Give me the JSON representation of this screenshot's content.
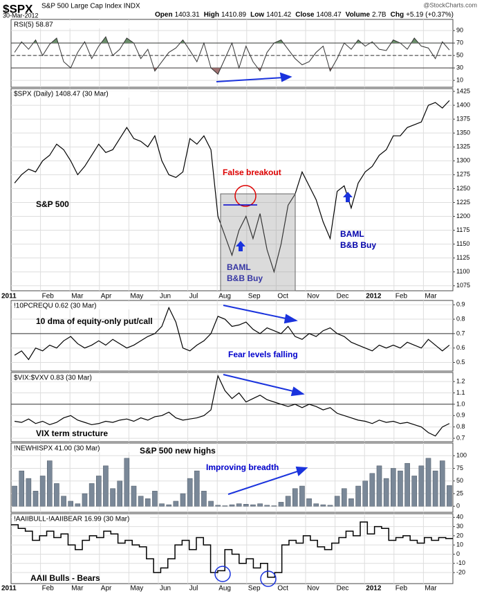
{
  "header": {
    "symbol": "$SPX",
    "name": "S&P 500 Large Cap Index INDX",
    "date": "30-Mar-2012",
    "source": "@StockCharts.com",
    "quote": [
      {
        "label": "Open",
        "value": "1403.31"
      },
      {
        "label": "High",
        "value": "1410.89"
      },
      {
        "label": "Low",
        "value": "1401.42"
      },
      {
        "label": "Close",
        "value": "1408.47"
      },
      {
        "label": "Volume",
        "value": "2.7B"
      },
      {
        "label": "Chg",
        "value": "+5.19 (+0.37%)"
      }
    ]
  },
  "time_axis": {
    "labels": [
      "2011",
      "Feb",
      "Mar",
      "Apr",
      "May",
      "Jun",
      "Jul",
      "Aug",
      "Sep",
      "Oct",
      "Nov",
      "Dec",
      "2012",
      "Feb",
      "Mar"
    ]
  },
  "chart_data": [
    {
      "type": "area-band",
      "label": "RSI(5) 58.87",
      "color": "#333333",
      "fill_above_color": "#6b8f6b",
      "fill_below_color": "#a07272",
      "values": [
        55,
        72,
        60,
        75,
        50,
        68,
        78,
        40,
        30,
        55,
        72,
        45,
        65,
        80,
        50,
        60,
        78,
        70,
        45,
        60,
        25,
        40,
        55,
        62,
        75,
        58,
        40,
        70,
        30,
        20,
        45,
        70,
        30,
        65,
        40,
        25,
        55,
        70,
        75,
        60,
        45,
        35,
        40,
        55,
        65,
        25,
        45,
        70,
        60,
        75,
        65,
        72,
        60,
        58,
        75,
        70,
        60,
        78,
        65,
        62,
        45,
        72,
        58.87
      ],
      "ylim": [
        -1,
        108
      ],
      "yticks": [
        90,
        70,
        50,
        30,
        10
      ],
      "reference_lines": [
        {
          "value": 70,
          "style": "solid"
        },
        {
          "value": 50,
          "style": "dashed"
        },
        {
          "value": 30,
          "style": "solid"
        }
      ],
      "grid": true,
      "annotations": []
    },
    {
      "type": "line",
      "label": "$SPX (Daily) 1408.47 (30 Mar)",
      "color": "#000000",
      "values": [
        1260,
        1275,
        1285,
        1280,
        1300,
        1310,
        1330,
        1320,
        1300,
        1275,
        1290,
        1310,
        1330,
        1315,
        1320,
        1340,
        1360,
        1340,
        1335,
        1325,
        1345,
        1300,
        1275,
        1270,
        1280,
        1340,
        1330,
        1345,
        1320,
        1200,
        1165,
        1130,
        1175,
        1200,
        1160,
        1205,
        1140,
        1100,
        1150,
        1220,
        1240,
        1280,
        1255,
        1230,
        1190,
        1160,
        1245,
        1255,
        1215,
        1260,
        1280,
        1290,
        1310,
        1320,
        1345,
        1345,
        1360,
        1365,
        1370,
        1400,
        1405,
        1395,
        1408.47
      ],
      "ylim": [
        1066,
        1430
      ],
      "yticks": [
        1425,
        1400,
        1375,
        1350,
        1325,
        1300,
        1275,
        1250,
        1225,
        1200,
        1175,
        1150,
        1125,
        1100,
        1075
      ],
      "reference_lines": [],
      "grid": true,
      "annotations": [
        {
          "text": "S&P 500",
          "color": "#000000"
        },
        {
          "text": "False breakout",
          "color": "#dd0000"
        },
        {
          "text": "BAML",
          "color": "#0000aa"
        },
        {
          "text": "B&B Buy",
          "color": "#0000aa"
        },
        {
          "text": "BAML",
          "color": "#0000aa"
        },
        {
          "text": "B&B Buy",
          "color": "#0000aa"
        }
      ]
    },
    {
      "type": "line",
      "label": "!10PCREQU 0.62 (30 Mar)",
      "color": "#000000",
      "values": [
        0.55,
        0.58,
        0.52,
        0.6,
        0.58,
        0.62,
        0.6,
        0.65,
        0.68,
        0.63,
        0.6,
        0.62,
        0.65,
        0.62,
        0.66,
        0.63,
        0.6,
        0.62,
        0.65,
        0.68,
        0.7,
        0.75,
        0.88,
        0.78,
        0.6,
        0.58,
        0.62,
        0.65,
        0.7,
        0.82,
        0.8,
        0.75,
        0.76,
        0.78,
        0.73,
        0.7,
        0.74,
        0.72,
        0.7,
        0.75,
        0.68,
        0.66,
        0.7,
        0.68,
        0.72,
        0.74,
        0.7,
        0.68,
        0.64,
        0.62,
        0.6,
        0.58,
        0.62,
        0.6,
        0.62,
        0.6,
        0.64,
        0.62,
        0.6,
        0.66,
        0.62,
        0.58,
        0.62
      ],
      "ylim": [
        0.44,
        0.93
      ],
      "yticks": [
        0.9,
        0.8,
        0.7,
        0.6,
        0.5
      ],
      "reference_lines": [
        {
          "value": 0.7,
          "style": "solid"
        }
      ],
      "grid": true,
      "annotations": [
        {
          "text": "10 dma of equity-only put/call",
          "color": "#000000"
        },
        {
          "text": "Fear levels falling",
          "color": "#0000cc"
        }
      ]
    },
    {
      "type": "line",
      "label": "$VIX:$VXV 0.83 (30 Mar)",
      "color": "#000000",
      "values": [
        0.85,
        0.84,
        0.87,
        0.83,
        0.85,
        0.82,
        0.84,
        0.88,
        0.9,
        0.86,
        0.84,
        0.82,
        0.83,
        0.85,
        0.84,
        0.86,
        0.87,
        0.85,
        0.88,
        0.86,
        0.89,
        0.9,
        0.93,
        0.88,
        0.86,
        0.87,
        0.88,
        0.9,
        0.95,
        1.25,
        1.12,
        1.05,
        1.1,
        1.02,
        1.05,
        1.08,
        1.04,
        1.02,
        1,
        0.98,
        1,
        0.97,
        1,
        0.98,
        0.95,
        0.97,
        0.92,
        0.9,
        0.88,
        0.86,
        0.85,
        0.83,
        0.86,
        0.84,
        0.85,
        0.83,
        0.84,
        0.82,
        0.8,
        0.75,
        0.72,
        0.8,
        0.83
      ],
      "ylim": [
        0.67,
        1.28
      ],
      "yticks": [
        1.2,
        1.1,
        {
          "value": 1,
          "label": "1.0"
        },
        0.9,
        0.8,
        0.7
      ],
      "reference_lines": [
        {
          "value": 1,
          "style": "solid"
        }
      ],
      "grid": true,
      "annotations": [
        {
          "text": "VIX term structure",
          "color": "#000000"
        }
      ]
    },
    {
      "type": "bar",
      "label": "!NEWHISPX 41.00 (30 Mar)",
      "color": "#7a8898",
      "values": [
        40,
        70,
        55,
        30,
        60,
        90,
        45,
        20,
        10,
        5,
        25,
        45,
        60,
        80,
        35,
        50,
        95,
        40,
        20,
        15,
        30,
        5,
        3,
        10,
        25,
        55,
        70,
        30,
        10,
        2,
        1,
        3,
        5,
        4,
        3,
        5,
        2,
        1,
        8,
        20,
        35,
        40,
        15,
        5,
        3,
        2,
        20,
        35,
        15,
        40,
        50,
        65,
        80,
        55,
        75,
        70,
        85,
        60,
        80,
        95,
        70,
        90,
        41
      ],
      "ylim": [
        -12,
        125
      ],
      "yticks": [
        100,
        75,
        50,
        25,
        0
      ],
      "reference_lines": [],
      "grid": true,
      "annotations": [
        {
          "text": "S&P 500 new highs",
          "color": "#000000"
        },
        {
          "text": "Improving breadth",
          "color": "#0000cc"
        }
      ]
    },
    {
      "type": "step",
      "label": "!AAIIBULL-!AAIIBEAR 16.99 (30 Mar)",
      "color": "#000000",
      "values": [
        32,
        28,
        25,
        15,
        20,
        25,
        18,
        22,
        10,
        5,
        15,
        20,
        18,
        25,
        22,
        12,
        15,
        10,
        8,
        -5,
        -20,
        -15,
        -5,
        10,
        15,
        5,
        18,
        10,
        -20,
        -18,
        5,
        0,
        -10,
        -5,
        -15,
        -10,
        -25,
        -20,
        10,
        15,
        12,
        20,
        15,
        8,
        5,
        12,
        18,
        25,
        20,
        35,
        22,
        30,
        28,
        15,
        18,
        20,
        15,
        12,
        18,
        15,
        18,
        16.99
      ],
      "ylim": [
        -32,
        44
      ],
      "yticks": [
        40,
        30,
        20,
        10,
        0,
        -10,
        -20
      ],
      "reference_lines": [],
      "grid": true,
      "annotations": [
        {
          "text": "AAII Bulls - Bears",
          "color": "#000000"
        }
      ]
    }
  ]
}
